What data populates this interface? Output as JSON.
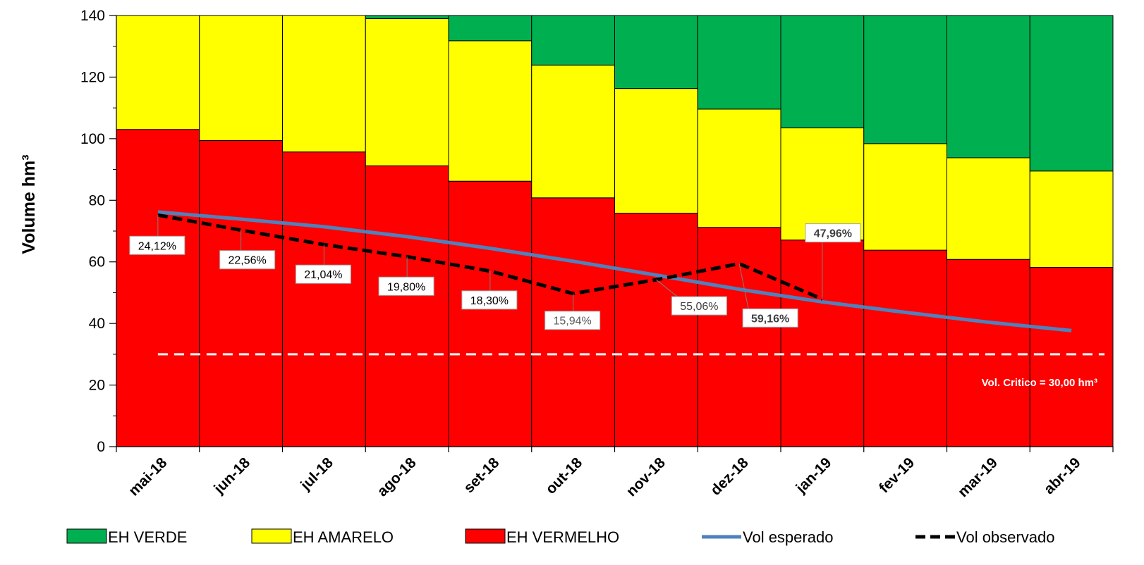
{
  "chart_data": {
    "type": "bar",
    "stacked": true,
    "ylabel": "Volume hm³",
    "ylim": [
      0,
      140
    ],
    "yticks": [
      0,
      20,
      40,
      60,
      80,
      100,
      120,
      140
    ],
    "grid": false,
    "legend_position": "bottom",
    "categories": [
      "mai-18",
      "jun-18",
      "jul-18",
      "ago-18",
      "set-18",
      "out-18",
      "nov-18",
      "dez-18",
      "jan-19",
      "fev-19",
      "mar-19",
      "abr-19"
    ],
    "series": [
      {
        "name": "EH VERMELHO",
        "kind": "bar",
        "color": "#ff0000",
        "values": [
          103.0,
          99.4,
          95.7,
          91.2,
          86.2,
          80.8,
          75.8,
          71.2,
          67.1,
          63.8,
          60.8,
          58.2
        ]
      },
      {
        "name": "EH AMARELO",
        "kind": "bar",
        "color": "#ffff00",
        "values": [
          37.0,
          40.6,
          44.3,
          47.8,
          45.6,
          43.1,
          40.5,
          38.4,
          36.4,
          34.6,
          33.0,
          31.3
        ]
      },
      {
        "name": "EH VERDE",
        "kind": "bar",
        "color": "#00b050",
        "values": [
          0,
          0,
          0,
          1.0,
          8.2,
          16.1,
          23.7,
          30.4,
          36.5,
          41.6,
          46.2,
          50.5
        ]
      },
      {
        "name": "Vol esperado",
        "kind": "line",
        "color": "#4f81bd",
        "values": [
          76.2,
          73.9,
          71.4,
          68.2,
          64.4,
          60.2,
          55.7,
          51.1,
          47.0,
          43.6,
          40.4,
          37.7
        ]
      },
      {
        "name": "Vol observado",
        "kind": "line",
        "dashed": true,
        "color": "#000000",
        "values": [
          75.2,
          70.3,
          65.6,
          61.7,
          57.0,
          49.7,
          54.2,
          59.4,
          47.9,
          null,
          null,
          null
        ]
      }
    ],
    "data_labels": [
      {
        "text": "24,12%",
        "index": 0,
        "bold": false,
        "color": "#000000"
      },
      {
        "text": "22,56%",
        "index": 1,
        "bold": false,
        "color": "#000000"
      },
      {
        "text": "21,04%",
        "index": 2,
        "bold": false,
        "color": "#000000"
      },
      {
        "text": "19,80%",
        "index": 3,
        "bold": false,
        "color": "#000000"
      },
      {
        "text": "18,30%",
        "index": 4,
        "bold": false,
        "color": "#000000"
      },
      {
        "text": "15,94%",
        "index": 5,
        "bold": false,
        "color": "#595959"
      },
      {
        "text": "55,06%",
        "index": 6,
        "bold": false,
        "color": "#404040"
      },
      {
        "text": "59,16%",
        "index": 7,
        "bold": true,
        "color": "#404040"
      },
      {
        "text": "47,96%",
        "index": 8,
        "bold": true,
        "color": "#404040"
      }
    ],
    "reference_line": {
      "value": 30,
      "color": "#ffffff",
      "label": "Vol. Critico = 30,00 hm³"
    }
  }
}
